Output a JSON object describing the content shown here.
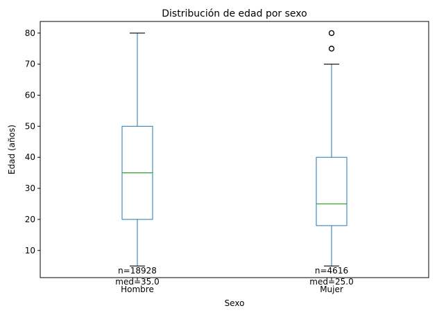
{
  "chart_data": {
    "type": "box",
    "title": "Distribución de edad por sexo",
    "xlabel": "Sexo",
    "ylabel": "Edad (años)",
    "ylim": [
      1.25,
      83.75
    ],
    "yticks": [
      10,
      20,
      30,
      40,
      50,
      60,
      70,
      80
    ],
    "grid": false,
    "categories": [
      "Hombre",
      "Mujer"
    ],
    "boxes": [
      {
        "category": "Hombre",
        "whisker_low": 5,
        "q1": 20,
        "median": 35,
        "q3": 50,
        "whisker_high": 80,
        "outliers": [],
        "annotation": [
          "n=18928",
          "med=35.0"
        ]
      },
      {
        "category": "Mujer",
        "whisker_low": 5,
        "q1": 18,
        "median": 25,
        "q3": 40,
        "whisker_high": 70,
        "outliers": [
          75,
          75,
          80,
          80
        ],
        "annotation": [
          "n=4616",
          "med=25.0"
        ]
      }
    ],
    "colors": {
      "box": "#1f77b4",
      "median": "#2ca02c",
      "whisker_cap": "#000000",
      "outlier": "#000000"
    }
  }
}
